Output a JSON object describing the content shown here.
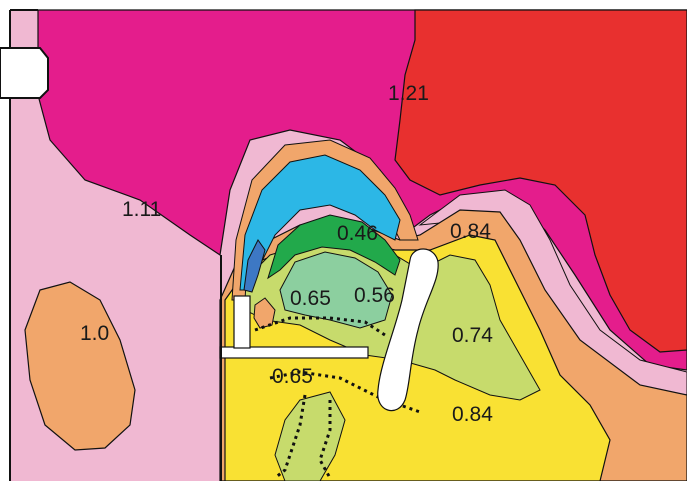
{
  "contour_labels": [
    "1.21",
    "1.11",
    "1.0",
    "0.46",
    "0.84",
    "0.65",
    "0.56",
    "0.74",
    "0.65",
    "0.84"
  ],
  "palette": {
    "red": "#e8302f",
    "magenta": "#e41d8c",
    "pink": "#f0b8d2",
    "orange": "#f1a66b",
    "yellow": "#f9e133",
    "light_green": "#c7db6c",
    "teal_green": "#8ccf9f",
    "green": "#22a94b",
    "cyan": "#2cb7e6",
    "blue": "#3d78c4",
    "white": "#ffffff",
    "line": "#111111"
  }
}
